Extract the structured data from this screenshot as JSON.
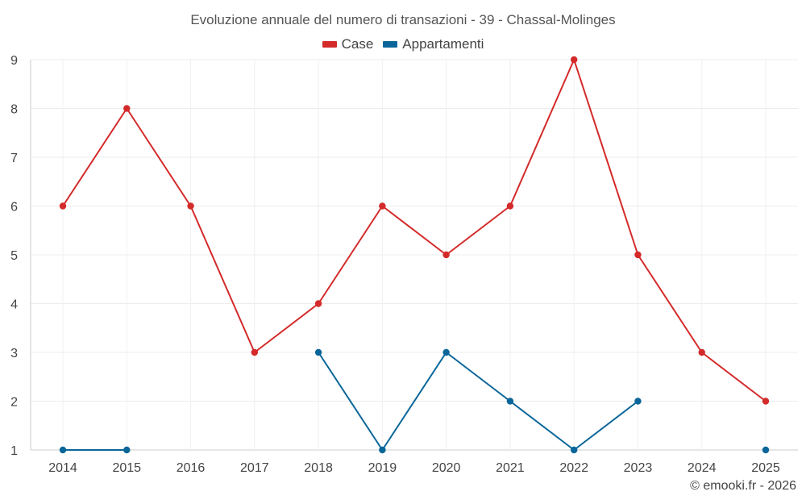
{
  "chart_data": {
    "type": "line",
    "title": "Evoluzione annuale del numero di transazioni - 39 - Chassal-Molinges",
    "xlabel": "",
    "ylabel": "",
    "categories": [
      "2014",
      "2015",
      "2016",
      "2017",
      "2018",
      "2019",
      "2020",
      "2021",
      "2022",
      "2023",
      "2024",
      "2025"
    ],
    "ylim": [
      1,
      9
    ],
    "yticks": [
      "1",
      "2",
      "3",
      "4",
      "5",
      "6",
      "7",
      "8",
      "9"
    ],
    "grid": true,
    "legend_position": "top-center",
    "series": [
      {
        "name": "Case",
        "color": "#d42a2a",
        "values": [
          6,
          8,
          6,
          3,
          4,
          6,
          5,
          6,
          9,
          5,
          3,
          2
        ]
      },
      {
        "name": "Appartamenti",
        "color": "#0a6699",
        "values": [
          1,
          1,
          null,
          null,
          3,
          1,
          3,
          2,
          1,
          2,
          null,
          1
        ]
      }
    ]
  },
  "credit": "© emooki.fr - 2026"
}
